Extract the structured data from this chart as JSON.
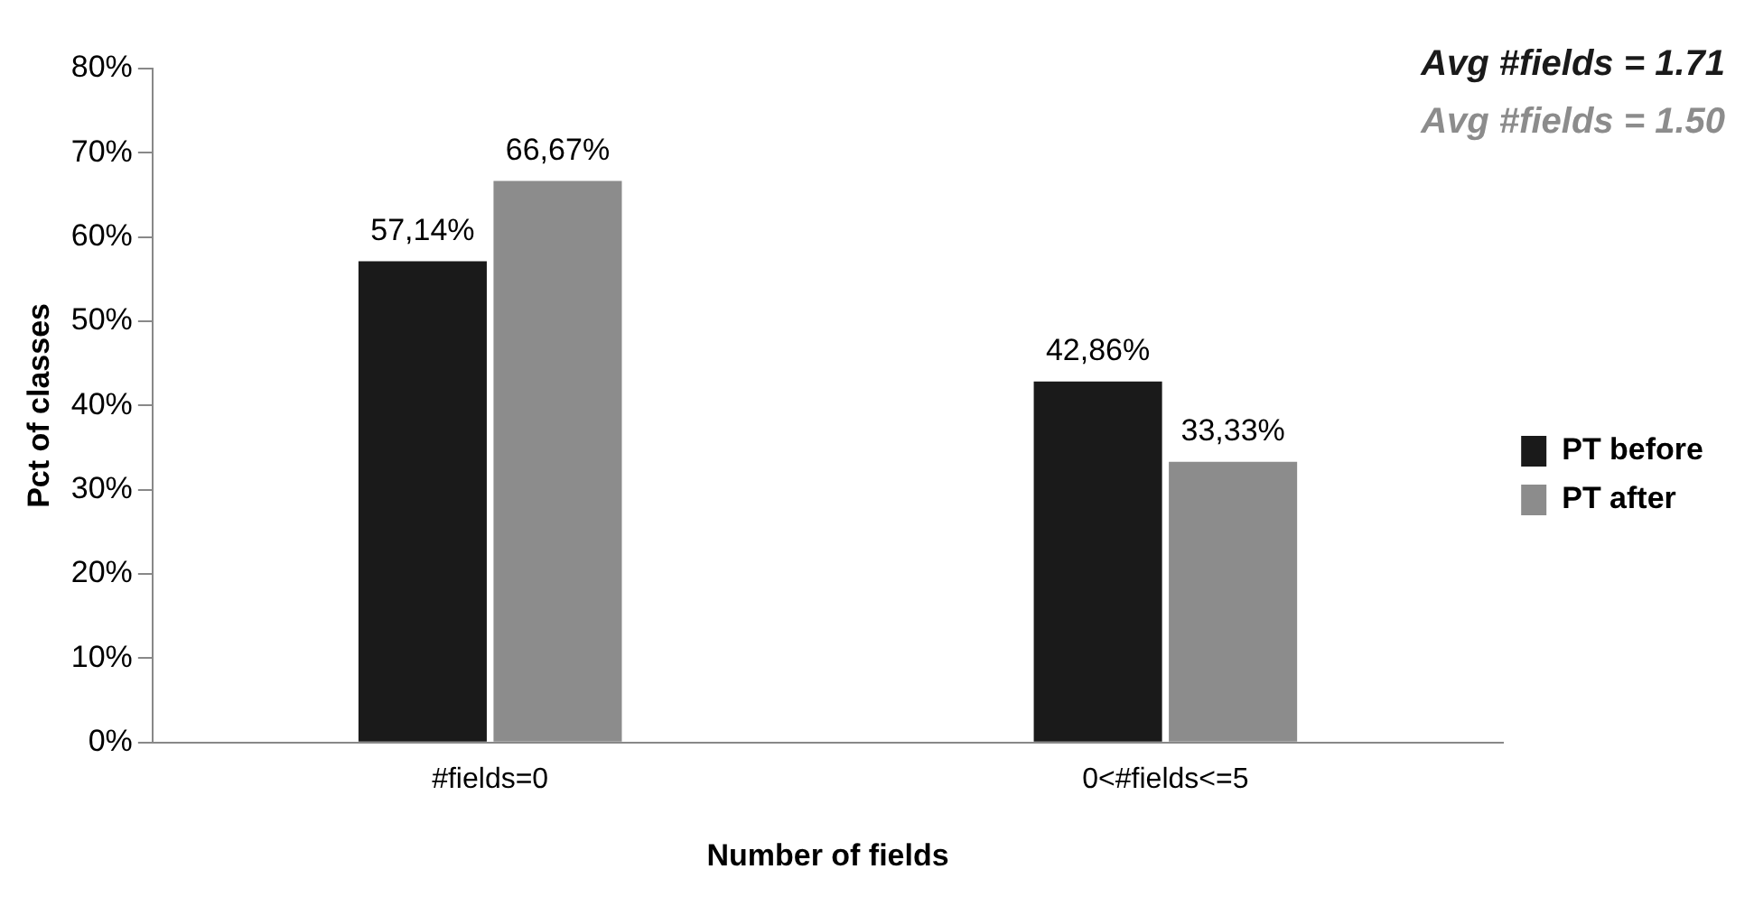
{
  "chart_data": {
    "type": "bar",
    "xlabel": "Number of fields",
    "ylabel": "Pct of classes",
    "categories": [
      "#fields=0",
      "0<#fields<=5"
    ],
    "series": [
      {
        "name": "PT before",
        "color": "#1a1a1a",
        "values": [
          57.14,
          42.86
        ],
        "value_labels": [
          "57,14%",
          "42,86%"
        ]
      },
      {
        "name": "PT after",
        "color": "#8c8c8c",
        "values": [
          66.67,
          33.33
        ],
        "value_labels": [
          "66,67%",
          "33,33%"
        ]
      }
    ],
    "ylim": [
      0,
      80
    ],
    "yticks": [
      {
        "value": 0,
        "label": "0%"
      },
      {
        "value": 10,
        "label": "10%"
      },
      {
        "value": 20,
        "label": "20%"
      },
      {
        "value": 30,
        "label": "30%"
      },
      {
        "value": 40,
        "label": "40%"
      },
      {
        "value": 50,
        "label": "50%"
      },
      {
        "value": 60,
        "label": "60%"
      },
      {
        "value": 70,
        "label": "70%"
      },
      {
        "value": 80,
        "label": "80%"
      }
    ],
    "annotations": [
      "Avg #fields = 1.71",
      "Avg #fields = 1.50"
    ],
    "grid": false,
    "legend": "right"
  }
}
